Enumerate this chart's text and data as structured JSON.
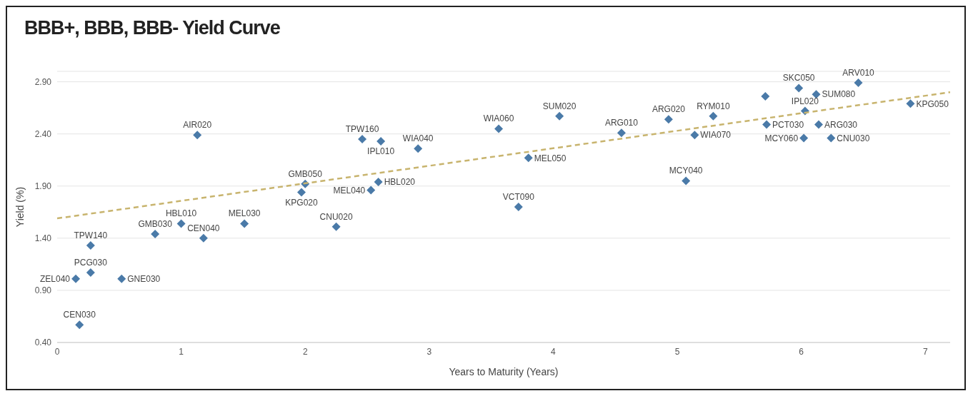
{
  "chart_data": {
    "type": "scatter",
    "title": "BBB+, BBB, BBB- Yield Curve",
    "xlabel": "Years to Maturity (Years)",
    "ylabel": "Yield (%)",
    "xlim": [
      0,
      7.2
    ],
    "xticks": [
      0,
      1,
      2,
      3,
      4,
      5,
      6,
      7
    ],
    "ylim": [
      0.4,
      3.0
    ],
    "yticks": [
      {
        "value": 0.4,
        "label": "0.40"
      },
      {
        "value": 0.9,
        "label": "0.90"
      },
      {
        "value": 1.4,
        "label": "1.40"
      },
      {
        "value": 1.9,
        "label": "1.90"
      },
      {
        "value": 2.4,
        "label": "2.40"
      },
      {
        "value": 2.9,
        "label": "2.90"
      }
    ],
    "grid": "y",
    "marker": "diamond",
    "legend": false,
    "series": [
      {
        "color": "#4a7aa8",
        "x": [
          0.15,
          0.18,
          0.27,
          0.27,
          0.52,
          0.79,
          1.0,
          1.18,
          1.13,
          1.51,
          2.0,
          1.97,
          2.25,
          2.46,
          2.61,
          2.53,
          2.59,
          2.91,
          3.56,
          4.05,
          3.8,
          3.72,
          4.55,
          4.93,
          5.07,
          5.14,
          5.29,
          5.71,
          5.72,
          5.98,
          6.12,
          6.03,
          6.14,
          6.02,
          6.24,
          6.46,
          6.88
        ],
        "values": [
          1.01,
          0.57,
          1.33,
          1.07,
          1.01,
          1.44,
          1.54,
          1.4,
          2.39,
          1.54,
          1.92,
          1.84,
          1.51,
          2.35,
          2.33,
          1.86,
          1.94,
          2.26,
          2.45,
          2.57,
          2.17,
          1.7,
          2.41,
          2.54,
          1.95,
          2.39,
          2.57,
          2.76,
          2.49,
          2.84,
          2.78,
          2.62,
          2.49,
          2.36,
          2.36,
          2.89,
          2.69
        ]
      },
      {
        "type": "line",
        "color": "#c8b46e",
        "line_style": "dashed",
        "marker": "none",
        "x": [
          0,
          7.2
        ],
        "values": [
          1.59,
          2.8
        ]
      }
    ],
    "annotations": [
      {
        "text": "ZEL040",
        "x": 0.15,
        "y": 1.01
      },
      {
        "text": "CEN030",
        "x": 0.18,
        "y": 0.57
      },
      {
        "text": "TPW140",
        "x": 0.27,
        "y": 1.33
      },
      {
        "text": "PCG030",
        "x": 0.27,
        "y": 1.07
      },
      {
        "text": "GNE030",
        "x": 0.52,
        "y": 1.01
      },
      {
        "text": "GMB030",
        "x": 0.79,
        "y": 1.44
      },
      {
        "text": "HBL010",
        "x": 1.0,
        "y": 1.54
      },
      {
        "text": "CEN040",
        "x": 1.18,
        "y": 1.4
      },
      {
        "text": "AIR020",
        "x": 1.13,
        "y": 2.39
      },
      {
        "text": "MEL030",
        "x": 1.51,
        "y": 1.54
      },
      {
        "text": "GMB050",
        "x": 2.0,
        "y": 1.92
      },
      {
        "text": "KPG020",
        "x": 1.97,
        "y": 1.84
      },
      {
        "text": "CNU020",
        "x": 2.25,
        "y": 1.51
      },
      {
        "text": "TPW160",
        "x": 2.46,
        "y": 2.35
      },
      {
        "text": "IPL010",
        "x": 2.61,
        "y": 2.33
      },
      {
        "text": "MEL040",
        "x": 2.53,
        "y": 1.86
      },
      {
        "text": "HBL020",
        "x": 2.59,
        "y": 1.94
      },
      {
        "text": "WIA040",
        "x": 2.91,
        "y": 2.26
      },
      {
        "text": "WIA060",
        "x": 3.56,
        "y": 2.45
      },
      {
        "text": "SUM020",
        "x": 4.05,
        "y": 2.57
      },
      {
        "text": "MEL050",
        "x": 3.8,
        "y": 2.17
      },
      {
        "text": "VCT090",
        "x": 3.72,
        "y": 1.7
      },
      {
        "text": "ARG010",
        "x": 4.55,
        "y": 2.41
      },
      {
        "text": "ARG020",
        "x": 4.93,
        "y": 2.54
      },
      {
        "text": "MCY040",
        "x": 5.07,
        "y": 1.95
      },
      {
        "text": "WIA070",
        "x": 5.14,
        "y": 2.39
      },
      {
        "text": "RYM010",
        "x": 5.29,
        "y": 2.57
      },
      {
        "text": "PCT030",
        "x": 5.72,
        "y": 2.49
      },
      {
        "text": "SKC050",
        "x": 5.98,
        "y": 2.84
      },
      {
        "text": "SUM080",
        "x": 6.12,
        "y": 2.78
      },
      {
        "text": "IPL020",
        "x": 6.03,
        "y": 2.62
      },
      {
        "text": "ARG030",
        "x": 6.14,
        "y": 2.49
      },
      {
        "text": "MCY060",
        "x": 6.02,
        "y": 2.36
      },
      {
        "text": "CNU030",
        "x": 6.24,
        "y": 2.36
      },
      {
        "text": "ARV010",
        "x": 6.46,
        "y": 2.89
      },
      {
        "text": "KPG050",
        "x": 6.88,
        "y": 2.69
      }
    ]
  }
}
